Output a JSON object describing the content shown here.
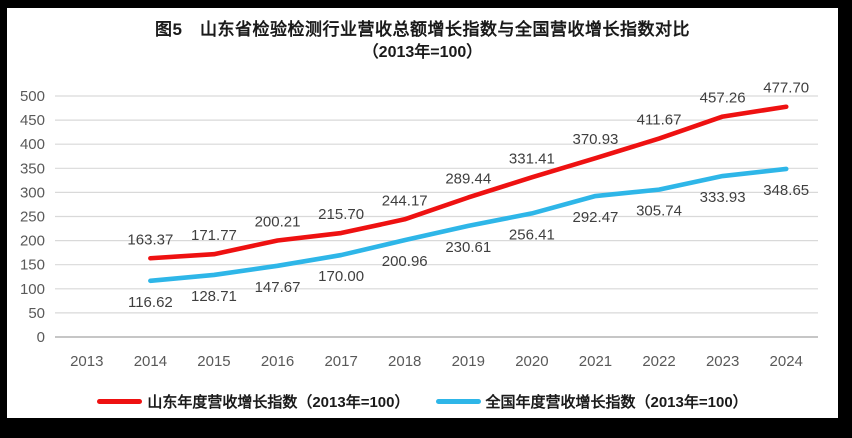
{
  "title": {
    "line1": "图5　山东省检验检测行业营收总额增长指数与全国营收增长指数对比",
    "line2": "（2013年=100）"
  },
  "legend": {
    "items": [
      {
        "key": "shandong",
        "label": "山东年度营收增长指数（2013年=100）",
        "color": "#ee1111"
      },
      {
        "key": "national",
        "label": "全国年度营收增长指数（2013年=100）",
        "color": "#2eb6e8"
      }
    ]
  },
  "chart_data": {
    "type": "line",
    "categories": [
      "2013",
      "2014",
      "2015",
      "2016",
      "2017",
      "2018",
      "2019",
      "2020",
      "2021",
      "2022",
      "2023",
      "2024"
    ],
    "series": [
      {
        "key": "shandong",
        "name": "山东年度营收增长指数（2013年=100）",
        "color": "#ee1111",
        "label_position": "above",
        "values": [
          null,
          163.37,
          171.77,
          200.21,
          215.7,
          244.17,
          289.44,
          331.41,
          370.93,
          411.67,
          457.26,
          477.7
        ]
      },
      {
        "key": "national",
        "name": "全国年度营收增长指数（2013年=100）",
        "color": "#2eb6e8",
        "label_position": "below",
        "values": [
          null,
          116.62,
          128.71,
          147.67,
          170.0,
          200.96,
          230.61,
          256.41,
          292.47,
          305.74,
          333.93,
          348.65
        ]
      }
    ],
    "ylim": [
      0,
      500
    ],
    "ytick_step": 50,
    "grid": true,
    "data_labels": true,
    "decimals": 2,
    "legend_position": "bottom"
  },
  "style": {
    "gridline": "#d9d9d9",
    "axis_line": "#b3b3b3",
    "tick_text": "#595959",
    "data_label_text": "#3f3f3f",
    "frame": "#000000"
  }
}
